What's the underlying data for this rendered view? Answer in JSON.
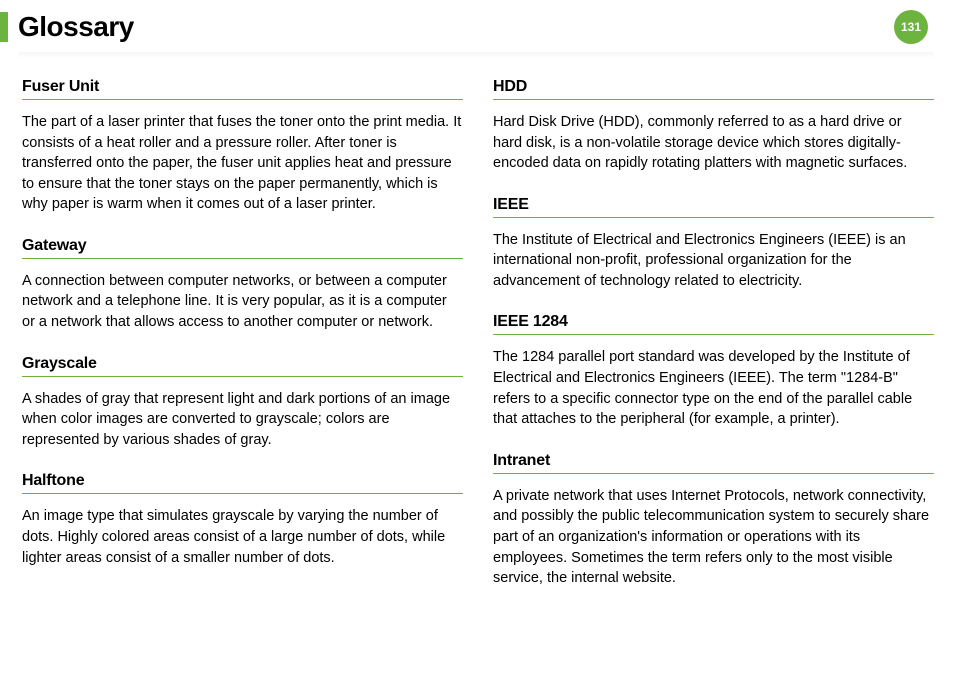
{
  "header": {
    "title": "Glossary",
    "page_number": "131"
  },
  "columns": [
    [
      {
        "term": "Fuser Unit",
        "definition": "The part of a laser printer that fuses the toner onto the print media. It consists of a heat roller and a pressure roller. After toner is transferred onto the paper, the fuser unit applies heat and pressure to ensure that the toner stays on the paper permanently, which is why paper is warm when it comes out of a laser printer."
      },
      {
        "term": "Gateway",
        "definition": "A connection between computer networks, or between a computer network and a telephone line. It is very popular, as it is a computer or a network that allows access to another computer or network."
      },
      {
        "term": "Grayscale",
        "definition": "A shades of gray that represent light and dark portions of an image when color images are converted to grayscale; colors are represented by various shades of gray."
      },
      {
        "term": "Halftone",
        "definition": "An image type that simulates grayscale by varying the number of dots. Highly colored areas consist of a large number of dots, while lighter areas consist of a smaller number of dots."
      }
    ],
    [
      {
        "term": "HDD",
        "definition": "Hard Disk Drive (HDD), commonly referred to as a hard drive or hard disk, is a non-volatile storage device which stores digitally-encoded data on rapidly rotating platters with magnetic surfaces."
      },
      {
        "term": "IEEE",
        "definition": "The Institute of Electrical and Electronics Engineers (IEEE) is an international non-profit, professional organization for the advancement of technology related to electricity."
      },
      {
        "term": "IEEE 1284",
        "definition": "The 1284 parallel port standard was developed by the Institute of Electrical and Electronics Engineers (IEEE). The term \"1284-B\" refers to a specific connector type on the end of the parallel cable that attaches to the peripheral (for example, a printer)."
      },
      {
        "term": "Intranet",
        "definition": "A private network that uses Internet Protocols, network connectivity, and possibly the public telecommunication system to securely share part of an organization's information or operations with its employees. Sometimes the term refers only to the most visible service, the internal website."
      }
    ]
  ]
}
